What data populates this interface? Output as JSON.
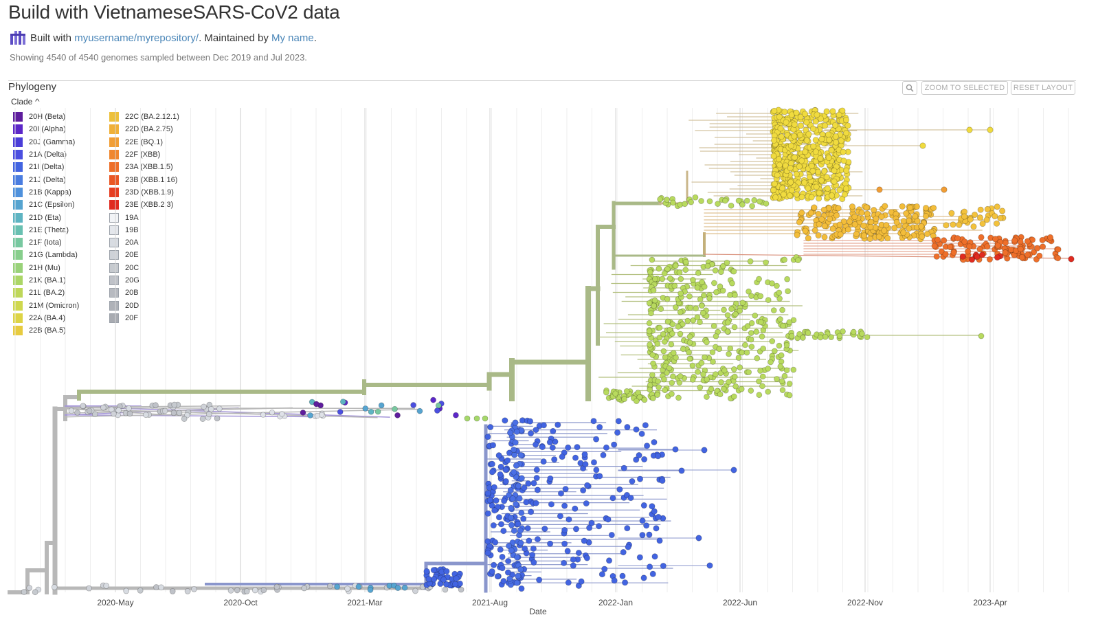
{
  "header": {
    "title": "Build with VietnameseSARS-CoV2 data",
    "built_with_prefix": "Built with",
    "repo_link": "myusername/myrepository/",
    "maintained_prefix": ". Maintained by",
    "maintainer_link": "My name",
    "period": "."
  },
  "summary": "Showing 4540 of 4540 genomes sampled between Dec 2019 and Jul 2023.",
  "panel": {
    "title": "Phylogeny",
    "zoom_icon": "magnifier-icon",
    "zoom_to_selected": "ZOOM TO SELECTED",
    "reset_layout": "RESET LAYOUT"
  },
  "legend": {
    "title": "Clade",
    "items": [
      {
        "label": "20H (Beta)",
        "color": "#5E1D9D"
      },
      {
        "label": "20I (Alpha)",
        "color": "#5C27C8"
      },
      {
        "label": "20J (Gamma)",
        "color": "#4A3DD8"
      },
      {
        "label": "21A (Delta)",
        "color": "#4B4FE0"
      },
      {
        "label": "21I (Delta)",
        "color": "#4264E1"
      },
      {
        "label": "21J (Delta)",
        "color": "#4A7DE0"
      },
      {
        "label": "21B (Kappa)",
        "color": "#4F91DC"
      },
      {
        "label": "21C (Epsilon)",
        "color": "#56A4D0"
      },
      {
        "label": "21D (Eta)",
        "color": "#5EB4C2"
      },
      {
        "label": "21E (Theta)",
        "color": "#69C0B1"
      },
      {
        "label": "21F (Iota)",
        "color": "#78C8A0"
      },
      {
        "label": "21G (Lambda)",
        "color": "#87CE8C"
      },
      {
        "label": "21H (Mu)",
        "color": "#99D279"
      },
      {
        "label": "21K (BA.1)",
        "color": "#ABD667"
      },
      {
        "label": "21L (BA.2)",
        "color": "#BED759"
      },
      {
        "label": "21M (Omicron)",
        "color": "#CFD84E"
      },
      {
        "label": "22A (BA.4)",
        "color": "#DDD445"
      },
      {
        "label": "22B (BA.5)",
        "color": "#E7CB3F"
      },
      {
        "label": "22C (BA.2.12.1)",
        "color": "#EDC03B"
      },
      {
        "label": "22D (BA.2.75)",
        "color": "#F0B038"
      },
      {
        "label": "22E (BQ.1)",
        "color": "#F19D34"
      },
      {
        "label": "22F (XBB)",
        "color": "#F0872F"
      },
      {
        "label": "23A (XBB.1.5)",
        "color": "#EE6F2A"
      },
      {
        "label": "23B (XBB.1.16)",
        "color": "#EA5725"
      },
      {
        "label": "23D (XBB.1.9)",
        "color": "#E63E22"
      },
      {
        "label": "23E (XBB.2.3)",
        "color": "#E02B20"
      },
      {
        "label": "19A",
        "color": "#F2F4F7"
      },
      {
        "label": "19B",
        "color": "#E4E7EC"
      },
      {
        "label": "20A",
        "color": "#D8DCE2"
      },
      {
        "label": "20E",
        "color": "#CED2D8"
      },
      {
        "label": "20C",
        "color": "#C6CACF"
      },
      {
        "label": "20G",
        "color": "#BFC2C8"
      },
      {
        "label": "20B",
        "color": "#B7BAC0"
      },
      {
        "label": "20D",
        "color": "#AFB2B8"
      },
      {
        "label": "20F",
        "color": "#A8ABB1"
      }
    ]
  },
  "axis": {
    "ticks": [
      "2020-May",
      "2020-Oct",
      "2021-Mar",
      "2021-Aug",
      "2022-Jan",
      "2022-Jun",
      "2022-Nov",
      "2023-Apr"
    ],
    "label": "Date"
  }
}
